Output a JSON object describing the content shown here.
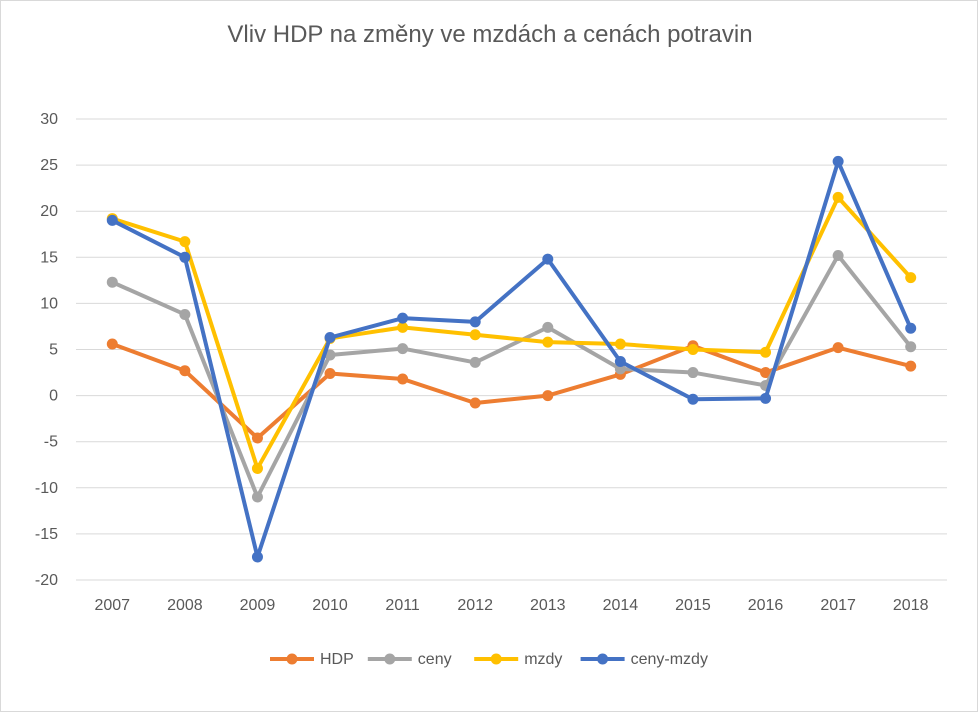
{
  "chart_data": {
    "type": "line",
    "title": "Vliv HDP na změny ve mzdách a cenách potravin",
    "xlabel": "",
    "ylabel": "",
    "categories": [
      "2007",
      "2008",
      "2009",
      "2010",
      "2011",
      "2012",
      "2013",
      "2014",
      "2015",
      "2016",
      "2017",
      "2018"
    ],
    "ylim": [
      -20,
      30
    ],
    "yticks": [
      "-20",
      "-15",
      "-10",
      "-5",
      "0",
      "5",
      "10",
      "15",
      "20",
      "25",
      "30"
    ],
    "grid": true,
    "legend_position": "bottom",
    "series": [
      {
        "name": "HDP",
        "color": "#ED7D31",
        "values": [
          5.6,
          2.7,
          -4.6,
          2.4,
          1.8,
          -0.8,
          0.0,
          2.3,
          5.4,
          2.5,
          5.2,
          3.2
        ]
      },
      {
        "name": "ceny",
        "color": "#A5A5A5",
        "values": [
          12.3,
          8.8,
          -11.0,
          4.4,
          5.1,
          3.6,
          7.4,
          2.9,
          2.5,
          1.1,
          15.2,
          5.3
        ]
      },
      {
        "name": "mzdy",
        "color": "#FFC000",
        "values": [
          19.2,
          16.7,
          -7.9,
          6.2,
          7.4,
          6.6,
          5.8,
          5.6,
          5.0,
          4.7,
          21.5,
          12.8
        ]
      },
      {
        "name": "ceny-mzdy",
        "color": "#4472C4",
        "values": [
          19.0,
          15.0,
          -17.5,
          6.3,
          8.4,
          8.0,
          14.8,
          3.7,
          -0.4,
          -0.3,
          25.4,
          7.3
        ]
      }
    ]
  }
}
